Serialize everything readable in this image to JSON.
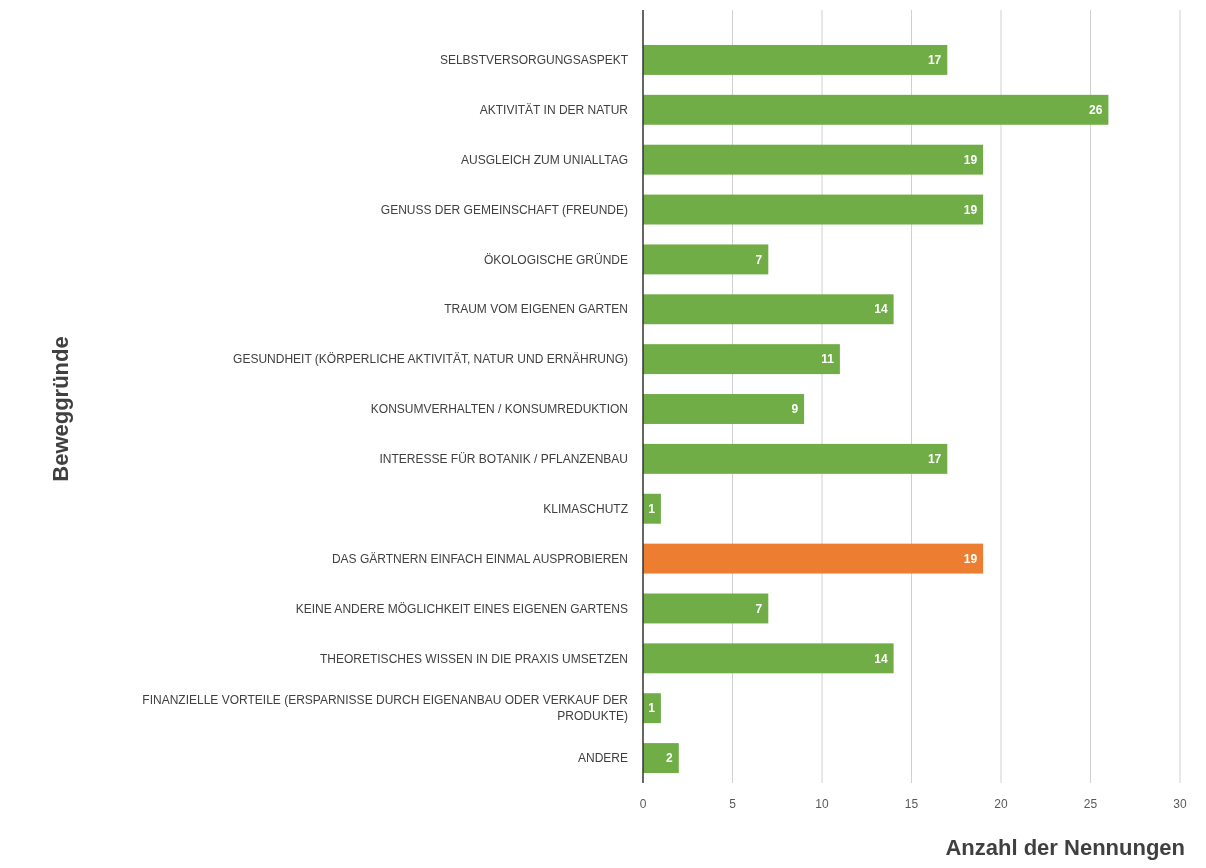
{
  "chart_data": {
    "type": "bar",
    "orientation": "horizontal",
    "categories": [
      "SELBSTVERSORGUNGSASPEKT",
      "AKTIVITÄT IN DER NATUR",
      "AUSGLEICH ZUM UNIALLTAG",
      "GENUSS DER GEMEINSCHAFT (FREUNDE)",
      "ÖKOLOGISCHE GRÜNDE",
      "TRAUM VOM EIGENEN GARTEN",
      "GESUNDHEIT (KÖRPERLICHE AKTIVITÄT, NATUR UND ERNÄHRUNG)",
      "KONSUMVERHALTEN / KONSUMREDUKTION",
      "INTERESSE FÜR BOTANIK / PFLANZENBAU",
      "KLIMASCHUTZ",
      "DAS GÄRTNERN EINFACH EINMAL AUSPROBIEREN",
      "KEINE ANDERE MÖGLICHKEIT EINES EIGENEN GARTENS",
      "THEORETISCHES WISSEN IN DIE PRAXIS UMSETZEN",
      "FINANZIELLE VORTEILE (ERSPARNISSE DURCH EIGENANBAU ODER VERKAUF DER PRODUKTE)",
      "ANDERE"
    ],
    "values": [
      17,
      26,
      19,
      19,
      7,
      14,
      11,
      9,
      17,
      1,
      19,
      7,
      14,
      1,
      2
    ],
    "colors": [
      "#70ad47",
      "#70ad47",
      "#70ad47",
      "#70ad47",
      "#70ad47",
      "#70ad47",
      "#70ad47",
      "#70ad47",
      "#70ad47",
      "#70ad47",
      "#ed7d31",
      "#70ad47",
      "#70ad47",
      "#70ad47",
      "#70ad47"
    ],
    "xlim": [
      0,
      30
    ],
    "xticks": [
      0,
      5,
      10,
      15,
      20,
      25,
      30
    ],
    "xlabel": "Anzahl der Nennungen",
    "ylabel": "Beweggründe",
    "data_labels": true,
    "grid": "x"
  }
}
